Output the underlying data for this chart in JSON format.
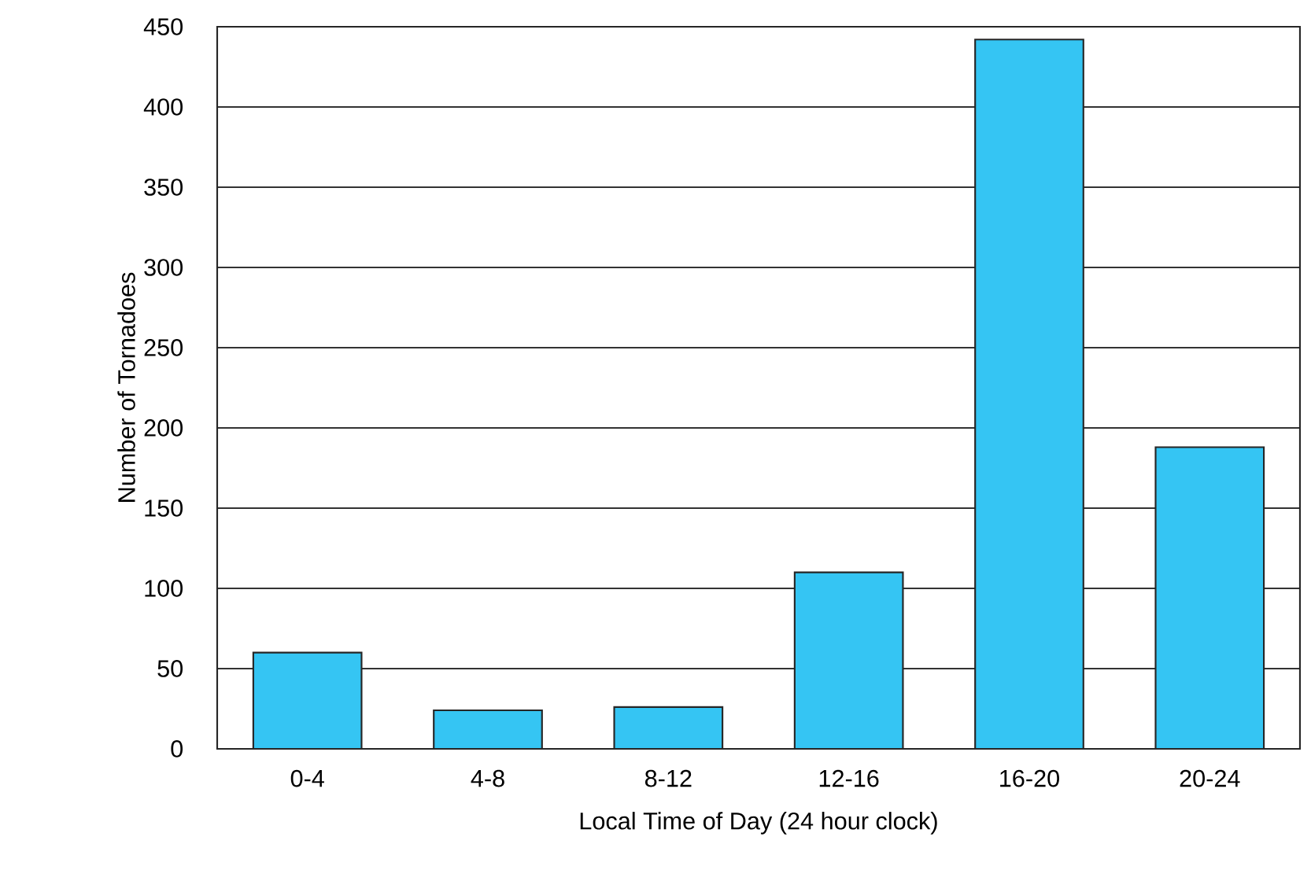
{
  "chart_data": {
    "type": "bar",
    "xlabel": "Local Time of Day (24 hour clock)",
    "ylabel": "Number of Tornadoes",
    "categories": [
      "0-4",
      "4-8",
      "8-12",
      "12-16",
      "16-20",
      "20-24"
    ],
    "values": [
      60,
      24,
      26,
      110,
      442,
      188
    ],
    "color": "#35c5f3",
    "ylim": [
      0,
      450
    ],
    "yticks": [
      0,
      50,
      100,
      150,
      200,
      250,
      300,
      350,
      400,
      450
    ],
    "grid": "y"
  }
}
